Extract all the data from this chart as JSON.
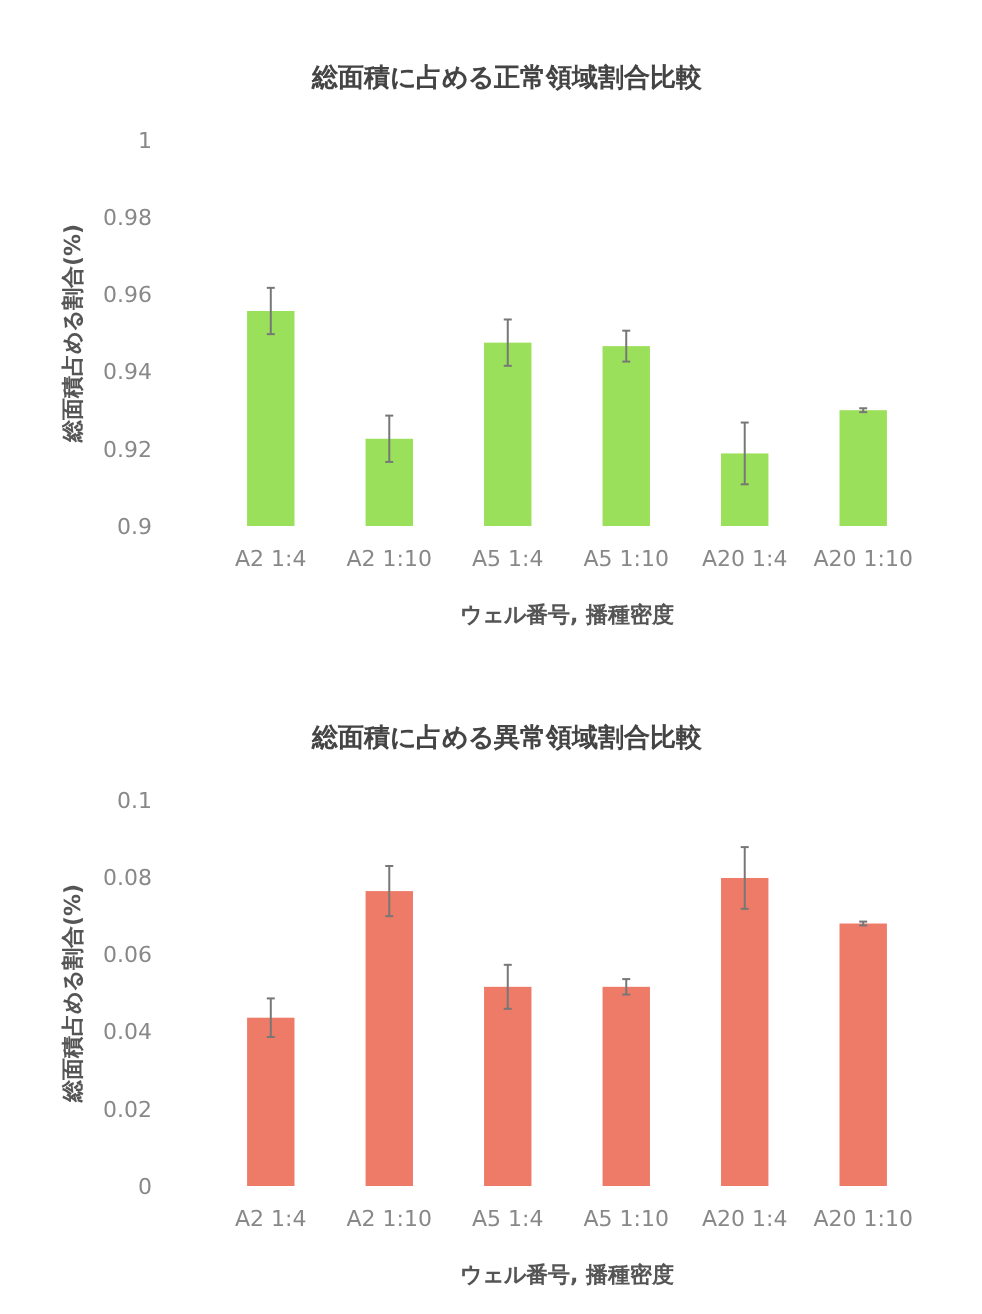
{
  "chart_data": [
    {
      "type": "bar",
      "title": "総面積に占める正常領域割合比較",
      "xlabel": "ウェル番号, 播種密度",
      "ylabel": "総面積占める割合(%)",
      "categories": [
        "A2 1:4",
        "A2 1:10",
        "A5 1:4",
        "A5 1:10",
        "A20 1:4",
        "A20 1:10"
      ],
      "values": [
        0.9557,
        0.9226,
        0.9475,
        0.9466,
        0.9188,
        0.93
      ],
      "errors": [
        0.006,
        0.006,
        0.006,
        0.004,
        0.008,
        0.0005
      ],
      "color": "#9be05a",
      "ylim": [
        0.9,
        1
      ],
      "yticks": [
        {
          "value": 0.9,
          "label": "0.9"
        },
        {
          "value": 0.92,
          "label": "0.92"
        },
        {
          "value": 0.94,
          "label": "0.94"
        },
        {
          "value": 0.96,
          "label": "0.96"
        },
        {
          "value": 0.98,
          "label": "0.98"
        },
        {
          "value": 1,
          "label": "1"
        }
      ]
    },
    {
      "type": "bar",
      "title": "総面積に占める異常領域割合比較",
      "xlabel": "ウェル番号, 播種密度",
      "ylabel": "総面積占める割合(%)",
      "categories": [
        "A2 1:4",
        "A2 1:10",
        "A5 1:4",
        "A5 1:10",
        "A20 1:4",
        "A20 1:10"
      ],
      "values": [
        0.0436,
        0.0764,
        0.0516,
        0.0516,
        0.0798,
        0.068
      ],
      "errors": [
        0.005,
        0.0065,
        0.0057,
        0.002,
        0.008,
        0.0005
      ],
      "color": "#ee7a68",
      "ylim": [
        0,
        0.1
      ],
      "yticks": [
        {
          "value": 0,
          "label": "0"
        },
        {
          "value": 0.02,
          "label": "0.02"
        },
        {
          "value": 0.04,
          "label": "0.04"
        },
        {
          "value": 0.06,
          "label": "0.06"
        },
        {
          "value": 0.08,
          "label": "0.08"
        },
        {
          "value": 0.1,
          "label": "0.1"
        }
      ]
    }
  ]
}
